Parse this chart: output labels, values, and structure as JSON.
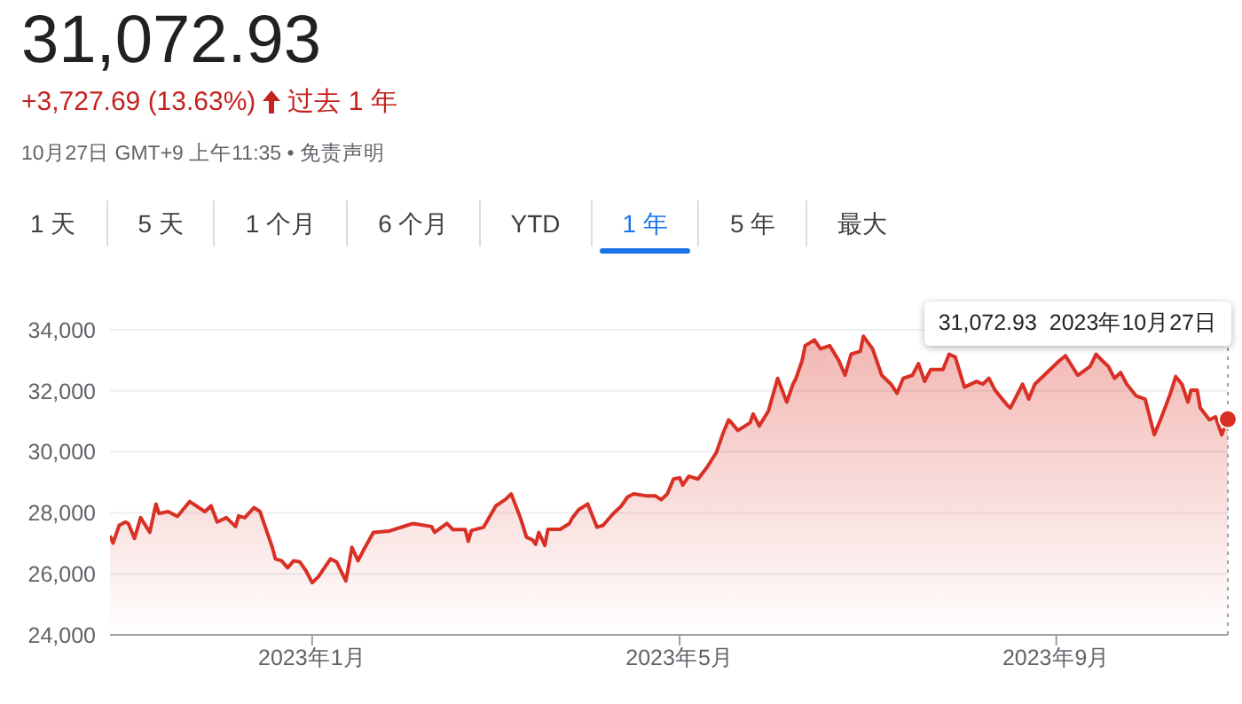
{
  "chart_data": {
    "type": "area",
    "title": "31,072.93",
    "subtitle": "+3,727.69 (13.63%)",
    "annotations": [
      "过去 1 年",
      "10月27日 GMT+9 上午11:35 • 免责声明",
      "1 天",
      "5 天",
      "1 个月",
      "6 个月",
      "YTD",
      "1 年",
      "5 年",
      "最大",
      "31,072.93  2023年10月27日"
    ],
    "x": [
      "2022-10-27",
      "2022-10-28",
      "2022-10-30",
      "2022-11-01",
      "2022-11-02",
      "2022-11-04",
      "2022-11-06",
      "2022-11-09",
      "2022-11-11",
      "2022-11-12",
      "2022-11-15",
      "2022-11-18",
      "2022-11-22",
      "2022-11-27",
      "2022-11-29",
      "2022-12-01",
      "2022-12-04",
      "2022-12-07",
      "2022-12-08",
      "2022-12-10",
      "2022-12-13",
      "2022-12-15",
      "2022-12-17",
      "2022-12-19",
      "2022-12-20",
      "2022-12-22",
      "2022-12-24",
      "2022-12-26",
      "2022-12-28",
      "2022-12-30",
      "2023-01-01",
      "2023-01-03",
      "2023-01-07",
      "2023-01-09",
      "2023-01-12",
      "2023-01-13",
      "2023-01-14",
      "2023-01-16",
      "2023-01-18",
      "2023-01-21",
      "2023-01-26",
      "2023-02-01",
      "2023-02-03",
      "2023-02-09",
      "2023-02-10",
      "2023-02-14",
      "2023-02-16",
      "2023-02-20",
      "2023-02-21",
      "2023-02-22",
      "2023-02-26",
      "2023-03-02",
      "2023-03-05",
      "2023-03-07",
      "2023-03-10",
      "2023-03-12",
      "2023-03-14",
      "2023-03-15",
      "2023-03-16",
      "2023-03-18",
      "2023-03-19",
      "2023-03-23",
      "2023-03-26",
      "2023-03-27",
      "2023-03-29",
      "2023-04-01",
      "2023-04-04",
      "2023-04-06",
      "2023-04-09",
      "2023-04-12",
      "2023-04-14",
      "2023-04-16",
      "2023-04-20",
      "2023-04-23",
      "2023-04-25",
      "2023-04-27",
      "2023-04-29",
      "2023-05-01",
      "2023-05-02",
      "2023-05-04",
      "2023-05-07",
      "2023-05-10",
      "2023-05-13",
      "2023-05-15",
      "2023-05-17",
      "2023-05-18",
      "2023-05-20",
      "2023-05-24",
      "2023-05-25",
      "2023-05-27",
      "2023-05-30",
      "2023-06-02",
      "2023-06-05",
      "2023-06-07",
      "2023-06-08",
      "2023-06-10",
      "2023-06-11",
      "2023-06-14",
      "2023-06-16",
      "2023-06-19",
      "2023-06-22",
      "2023-06-24",
      "2023-06-26",
      "2023-06-29",
      "2023-06-30",
      "2023-07-03",
      "2023-07-06",
      "2023-07-09",
      "2023-07-11",
      "2023-07-13",
      "2023-07-16",
      "2023-07-18",
      "2023-07-20",
      "2023-07-22",
      "2023-07-26",
      "2023-07-28",
      "2023-07-30",
      "2023-08-02",
      "2023-08-06",
      "2023-08-08",
      "2023-08-10",
      "2023-08-12",
      "2023-08-16",
      "2023-08-17",
      "2023-08-21",
      "2023-08-23",
      "2023-08-25",
      "2023-08-30",
      "2023-09-02",
      "2023-09-04",
      "2023-09-08",
      "2023-09-12",
      "2023-09-14",
      "2023-09-16",
      "2023-09-18",
      "2023-09-20",
      "2023-09-22",
      "2023-09-24",
      "2023-09-27",
      "2023-09-30",
      "2023-10-03",
      "2023-10-05",
      "2023-10-08",
      "2023-10-10",
      "2023-10-12",
      "2023-10-14",
      "2023-10-15",
      "2023-10-17",
      "2023-10-18",
      "2023-10-21",
      "2023-10-23",
      "2023-10-25",
      "2023-10-27"
    ],
    "series": [
      {
        "color": "#d93025",
        "values": [
          27250,
          27010,
          27590,
          27700,
          27650,
          27160,
          27840,
          27360,
          28290,
          27980,
          28040,
          27880,
          28370,
          28040,
          28230,
          27700,
          27840,
          27550,
          27900,
          27840,
          28170,
          28040,
          27450,
          26870,
          26490,
          26430,
          26200,
          26430,
          26390,
          26100,
          25710,
          25900,
          26490,
          26390,
          25770,
          26300,
          26870,
          26430,
          26820,
          27360,
          27400,
          27590,
          27650,
          27550,
          27360,
          27650,
          27450,
          27450,
          27070,
          27420,
          27530,
          28230,
          28430,
          28620,
          27840,
          27200,
          27110,
          26970,
          27360,
          26930,
          27460,
          27460,
          27650,
          27840,
          28100,
          28290,
          27530,
          27590,
          27940,
          28230,
          28520,
          28620,
          28560,
          28560,
          28430,
          28620,
          29110,
          29150,
          28910,
          29200,
          29110,
          29500,
          29980,
          30560,
          31050,
          30950,
          30700,
          30950,
          31240,
          30850,
          31340,
          32410,
          31630,
          32220,
          32410,
          32990,
          33480,
          33670,
          33380,
          33480,
          32990,
          32510,
          33200,
          33300,
          33790,
          33380,
          32510,
          32220,
          31920,
          32410,
          32510,
          32890,
          32310,
          32700,
          32700,
          33200,
          33110,
          32120,
          32310,
          32220,
          32410,
          32020,
          31530,
          31440,
          32220,
          31730,
          32220,
          32700,
          32990,
          33150,
          32510,
          32800,
          33200,
          32990,
          32800,
          32410,
          32600,
          32220,
          31840,
          31730,
          30560,
          31050,
          31840,
          32470,
          32220,
          31630,
          32020,
          32020,
          31440,
          31050,
          31150,
          30560,
          31070
        ]
      }
    ],
    "xlim": [
      "2022-10-27",
      "2023-10-27"
    ],
    "xticks": [
      {
        "value": "2023-01-01",
        "label": "2023年1月"
      },
      {
        "value": "2023-05-01",
        "label": "2023年5月"
      },
      {
        "value": "2023-09-01",
        "label": "2023年9月"
      }
    ],
    "ylim": [
      24000,
      34000
    ],
    "yticks": [
      {
        "value": 24000,
        "label": "24,000"
      },
      {
        "value": 26000,
        "label": "26,000"
      },
      {
        "value": 28000,
        "label": "28,000"
      },
      {
        "value": 30000,
        "label": "30,000"
      },
      {
        "value": 32000,
        "label": "32,000"
      },
      {
        "value": 34000,
        "label": "34,000"
      }
    ],
    "ref_lines": [
      {
        "axis": "x",
        "value": "2023-10-27",
        "color": "#9aa0a6",
        "line_style": "dotted"
      }
    ],
    "grid": "y",
    "legend": false,
    "marker": "none",
    "line_style": "solid"
  }
}
